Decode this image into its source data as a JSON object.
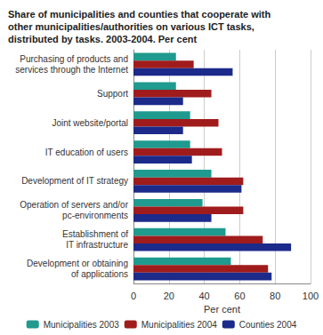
{
  "chart_data": {
    "type": "bar",
    "orientation": "horizontal",
    "title": "Share of municipalities and counties that cooperate with\nother municipalities/authorities on various ICT tasks,\ndistributed by tasks. 2003-2004. Per cent",
    "xlabel": "Per cent",
    "categories": [
      "Purchasing of products and\nservices through the Internet",
      "Support",
      "Joint website/portal",
      "IT education of users",
      "Development of IT strategy",
      "Operation of servers and/or\npc-environments",
      "Establishment of\nIT infrastructure",
      "Development or obtaining\nof applications"
    ],
    "series": [
      {
        "name": "Municipalities 2003",
        "color": "#1f9a8e",
        "values": [
          24,
          24,
          32,
          32,
          44,
          39,
          52,
          55
        ]
      },
      {
        "name": "Municipalities 2004",
        "color": "#a01c1c",
        "values": [
          34,
          44,
          48,
          50,
          62,
          62,
          73,
          76
        ]
      },
      {
        "name": "Counties 2004",
        "color": "#1c2a8a",
        "values": [
          56,
          28,
          28,
          33,
          61,
          44,
          89,
          78
        ]
      }
    ],
    "xlim": [
      0,
      100
    ],
    "xticks": [
      0,
      20,
      40,
      60,
      80,
      100
    ],
    "grid": true,
    "legend": "bottom"
  }
}
